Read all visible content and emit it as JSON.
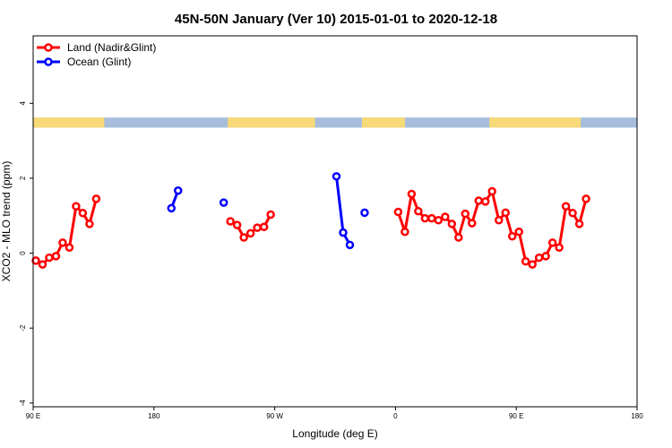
{
  "chart_data": {
    "type": "line",
    "title": "45N-50N January (Ver 10)   2015-01-01 to 2020-12-18",
    "xlabel": "Longitude (deg E)",
    "ylabel": "XCO2 - MLO trend (ppm)",
    "xlim": [
      90,
      540
    ],
    "ylim": [
      -4.1,
      5.8
    ],
    "x_ticks": [
      {
        "value": 90,
        "label": "90 E"
      },
      {
        "value": 180,
        "label": "180"
      },
      {
        "value": 270,
        "label": "90 W"
      },
      {
        "value": 360,
        "label": "0"
      },
      {
        "value": 450,
        "label": "90 E"
      },
      {
        "value": 540,
        "label": "180"
      }
    ],
    "y_ticks": [
      {
        "value": -4,
        "label": "-4"
      },
      {
        "value": -2,
        "label": "-2"
      },
      {
        "value": 0,
        "label": "0"
      },
      {
        "value": 2,
        "label": "2"
      },
      {
        "value": 4,
        "label": "4"
      }
    ],
    "legend_position": "top-left",
    "land_sea_strip": {
      "y_range": [
        3.35,
        3.62
      ],
      "land_color": "#f8d978",
      "ocean_color": "#a6bedc",
      "land_segments": [
        [
          90,
          143
        ],
        [
          235,
          300
        ],
        [
          335,
          367
        ],
        [
          430,
          498
        ]
      ]
    },
    "series": [
      {
        "name": "Land (Nadir&Glint)",
        "color": "#ff0000",
        "segments": [
          [
            [
              92,
              -0.2
            ],
            [
              97,
              -0.3
            ],
            [
              102,
              -0.12
            ],
            [
              107,
              -0.08
            ],
            [
              112,
              0.28
            ],
            [
              117,
              0.15
            ],
            [
              122,
              1.25
            ],
            [
              127,
              1.07
            ],
            [
              132,
              0.78
            ],
            [
              137,
              1.45
            ]
          ],
          [
            [
              237,
              0.85
            ],
            [
              242,
              0.75
            ],
            [
              247,
              0.42
            ],
            [
              252,
              0.53
            ],
            [
              257,
              0.68
            ],
            [
              262,
              0.7
            ],
            [
              267,
              1.03
            ]
          ],
          [
            [
              362,
              1.1
            ],
            [
              367,
              0.57
            ],
            [
              372,
              1.58
            ],
            [
              377,
              1.12
            ],
            [
              382,
              0.93
            ],
            [
              387,
              0.93
            ],
            [
              392,
              0.88
            ],
            [
              397,
              0.97
            ],
            [
              402,
              0.78
            ],
            [
              407,
              0.42
            ],
            [
              412,
              1.05
            ],
            [
              417,
              0.8
            ],
            [
              422,
              1.4
            ],
            [
              427,
              1.38
            ],
            [
              432,
              1.65
            ],
            [
              437,
              0.88
            ],
            [
              442,
              1.08
            ],
            [
              447,
              0.45
            ],
            [
              452,
              0.57
            ],
            [
              457,
              -0.22
            ],
            [
              462,
              -0.3
            ],
            [
              467,
              -0.12
            ],
            [
              472,
              -0.08
            ],
            [
              477,
              0.28
            ],
            [
              482,
              0.15
            ],
            [
              487,
              1.25
            ],
            [
              492,
              1.07
            ],
            [
              497,
              0.78
            ],
            [
              502,
              1.45
            ]
          ]
        ]
      },
      {
        "name": "Ocean (Glint)",
        "color": "#0000ff",
        "segments": [
          [
            [
              193,
              1.2
            ],
            [
              198,
              1.67
            ]
          ],
          [
            [
              232,
              1.35
            ]
          ],
          [
            [
              316,
              2.05
            ],
            [
              321,
              0.55
            ],
            [
              326,
              0.22
            ]
          ],
          [
            [
              337,
              1.08
            ]
          ]
        ]
      }
    ]
  }
}
